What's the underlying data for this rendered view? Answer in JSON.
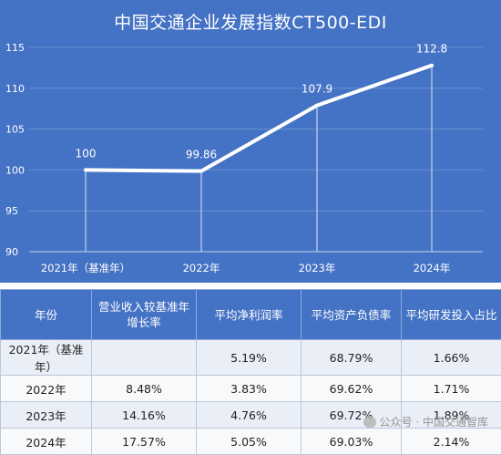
{
  "chart_data": {
    "type": "line",
    "title": "中国交通企业发展指数CT500-EDI",
    "categories": [
      "2021年（基准年）",
      "2022年",
      "2023年",
      "2024年"
    ],
    "values": [
      100,
      99.86,
      107.9,
      112.8
    ],
    "data_labels": [
      "100",
      "99.86",
      "107.9",
      "112.8"
    ],
    "ylim": [
      90,
      115
    ],
    "yticks": [
      90,
      95,
      100,
      105,
      110,
      115
    ],
    "ytick_labels": [
      "90",
      "95",
      "100",
      "105",
      "110",
      "115"
    ],
    "grid": true,
    "colors": {
      "background": "#4472c4",
      "line": "#ffffff",
      "text": "#ffffff"
    }
  },
  "table": {
    "headers": [
      "年份",
      "营业收入较基准年增长率",
      "平均净利润率",
      "平均资产负债率",
      "平均研发投入占比"
    ],
    "header_lines": [
      [
        "年份"
      ],
      [
        "营业收入较基准年",
        "增长率"
      ],
      [
        "平均净利润率"
      ],
      [
        "平均资产负债率"
      ],
      [
        "平均研发投入占比"
      ]
    ],
    "rows": [
      [
        "2021年（基准年）",
        "",
        "5.19%",
        "68.79%",
        "1.66%"
      ],
      [
        "2022年",
        "8.48%",
        "3.83%",
        "69.62%",
        "1.71%"
      ],
      [
        "2023年",
        "14.16%",
        "4.76%",
        "69.72%",
        "1.89%"
      ],
      [
        "2024年",
        "17.57%",
        "5.05%",
        "69.03%",
        "2.14%"
      ]
    ]
  },
  "watermark": {
    "text": "公众号 · 中国交通智库",
    "icon": "wechat-icon"
  }
}
